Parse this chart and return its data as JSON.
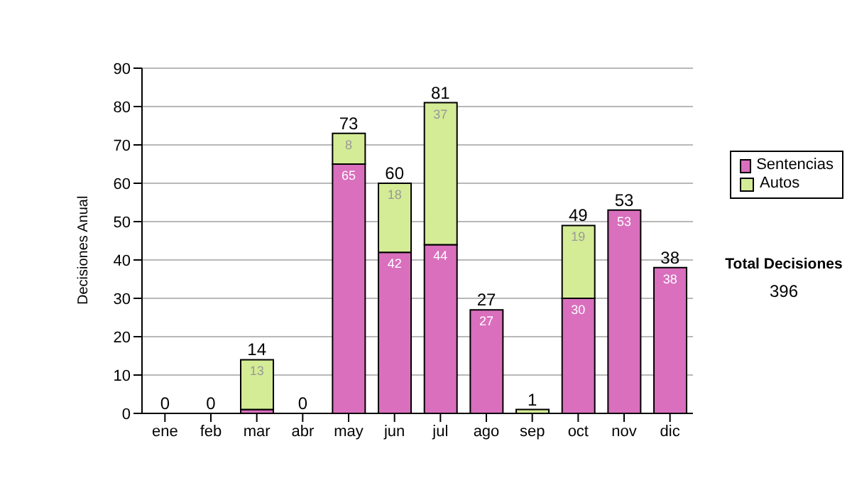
{
  "chart_data": {
    "type": "bar",
    "stacked": true,
    "ylabel": "Decisiones Anual",
    "categories": [
      "ene",
      "feb",
      "mar",
      "abr",
      "may",
      "jun",
      "jul",
      "ago",
      "sep",
      "oct",
      "nov",
      "dic"
    ],
    "series": [
      {
        "name": "Sentencias",
        "color": "#d96fbd",
        "values": [
          0,
          0,
          1,
          0,
          65,
          42,
          44,
          27,
          0,
          30,
          53,
          38
        ],
        "value_labels": [
          null,
          null,
          null,
          null,
          "65",
          "42",
          "44",
          "27",
          null,
          "30",
          "53",
          "38"
        ]
      },
      {
        "name": "Autos",
        "color": "#d4ec96",
        "values": [
          0,
          0,
          13,
          0,
          8,
          18,
          37,
          0,
          1,
          19,
          0,
          0
        ],
        "value_labels": [
          null,
          null,
          "13",
          null,
          "8",
          "18",
          "37",
          null,
          null,
          "19",
          null,
          null
        ]
      }
    ],
    "totals": [
      "0",
      "0",
      "14",
      "0",
      "73",
      "60",
      "81",
      "27",
      "1",
      "49",
      "53",
      "38"
    ],
    "ylim": [
      0,
      90
    ],
    "yticks": [
      0,
      10,
      20,
      30,
      40,
      50,
      60,
      70,
      80,
      90
    ],
    "grid": "y",
    "legend": "right",
    "annotations": [
      "Total Decisiones",
      "396"
    ]
  }
}
